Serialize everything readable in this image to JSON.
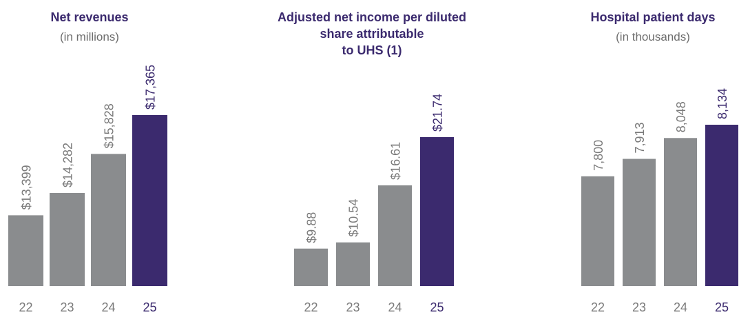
{
  "colors": {
    "past": "#8a8c8e",
    "current": "#3b2a6e",
    "label": "#7a7a7a",
    "title": "#3b2a6e"
  },
  "chart_data": [
    {
      "type": "bar",
      "title": "Net revenues",
      "subtitle": "(in millions)",
      "categories": [
        "22",
        "23",
        "24",
        "25"
      ],
      "values": [
        13399,
        14282,
        15828,
        17365
      ],
      "value_labels": [
        "$13,399",
        "$14,282",
        "$15,828",
        "$17,365"
      ],
      "highlight_index": 3
    },
    {
      "type": "bar",
      "title": "Adjusted net income per diluted share attributable to UHS (1)",
      "title_lines": [
        "Adjusted net income per diluted",
        "share attributable",
        "to UHS (1)"
      ],
      "subtitle": "",
      "categories": [
        "22",
        "23",
        "24",
        "25"
      ],
      "values": [
        9.88,
        10.54,
        16.61,
        21.74
      ],
      "value_labels": [
        "$9.88",
        "$10.54",
        "$16.61",
        "$21.74"
      ],
      "highlight_index": 3
    },
    {
      "type": "bar",
      "title": "Hospital patient days",
      "subtitle": "(in thousands)",
      "categories": [
        "22",
        "23",
        "24",
        "25"
      ],
      "values": [
        7800,
        7913,
        8048,
        8134
      ],
      "value_labels": [
        "7,800",
        "7,913",
        "8,048",
        "8,134"
      ],
      "highlight_index": 3
    }
  ]
}
